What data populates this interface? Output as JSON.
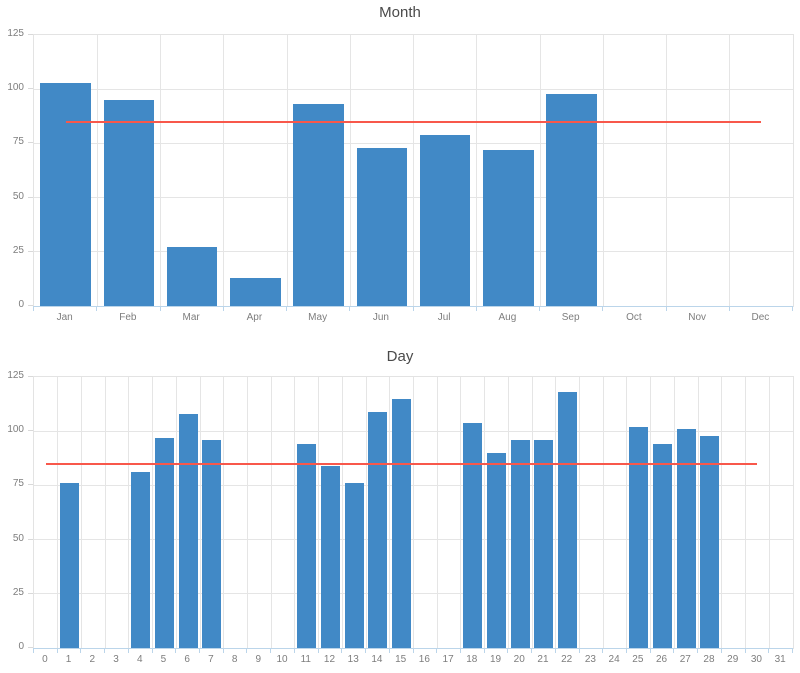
{
  "page_title": "Month and Day bar charts",
  "colors": {
    "background": "#FFFFFF",
    "bar": "#4189C6",
    "grid": "#E5E5E5",
    "plot_border": "#E3E3E3",
    "axis": "#BBD5EA",
    "y_tick": "#D9D9D9",
    "tick_label": "#7D7D7D",
    "title": "#4A4A4A",
    "ref_line": "#F8584B"
  },
  "chart_data": [
    {
      "type": "bar",
      "title": "Month",
      "xlabel": "",
      "ylabel": "",
      "grid": true,
      "legend_position": "none",
      "categories": [
        "Jan",
        "Feb",
        "Mar",
        "Apr",
        "May",
        "Jun",
        "Jul",
        "Aug",
        "Sep",
        "Oct",
        "Nov",
        "Dec"
      ],
      "values": [
        103,
        95,
        27,
        13,
        93,
        73,
        79,
        72,
        98,
        0,
        0,
        0
      ],
      "yticks": [
        0,
        25,
        50,
        75,
        100,
        125
      ],
      "ylim": [
        0,
        125
      ],
      "ref_line": {
        "value": 85,
        "from_index": 0,
        "to_index": 11,
        "color": "#F8584B"
      }
    },
    {
      "type": "bar",
      "title": "Day",
      "xlabel": "",
      "ylabel": "",
      "grid": true,
      "legend_position": "none",
      "categories": [
        "0",
        "1",
        "2",
        "3",
        "4",
        "5",
        "6",
        "7",
        "8",
        "9",
        "10",
        "11",
        "12",
        "13",
        "14",
        "15",
        "16",
        "17",
        "18",
        "19",
        "20",
        "21",
        "22",
        "23",
        "24",
        "25",
        "26",
        "27",
        "28",
        "29",
        "30",
        "31"
      ],
      "values": [
        0,
        76,
        0,
        0,
        81,
        97,
        108,
        96,
        0,
        0,
        0,
        94,
        84,
        76,
        109,
        115,
        0,
        0,
        104,
        90,
        96,
        96,
        118,
        0,
        0,
        102,
        94,
        101,
        98,
        0,
        0,
        0
      ],
      "yticks": [
        0,
        25,
        50,
        75,
        100,
        125
      ],
      "ylim": [
        0,
        125
      ],
      "ref_line": {
        "value": 85,
        "from_index": 0,
        "to_index": 30,
        "color": "#F8584B"
      }
    }
  ]
}
